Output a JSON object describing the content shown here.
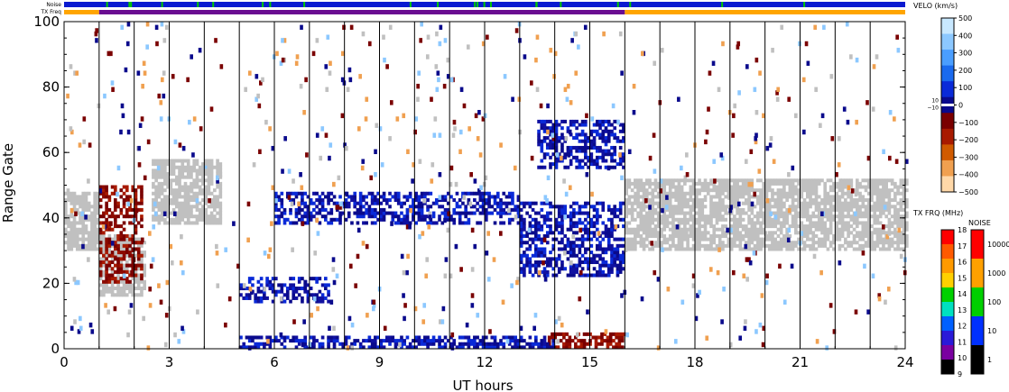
{
  "chart_data": {
    "type": "heatmap",
    "title": "",
    "xlabel": "UT hours",
    "ylabel": "Range Gate",
    "xlim": [
      0,
      24
    ],
    "ylim": [
      0,
      100
    ],
    "x_ticks": [
      "0",
      "3",
      "6",
      "9",
      "12",
      "15",
      "18",
      "21",
      "24"
    ],
    "y_ticks": [
      "0",
      "20",
      "40",
      "60",
      "80",
      "100"
    ],
    "scan_boundaries_ut": [
      1,
      2,
      3,
      4,
      5,
      6,
      7,
      8,
      9,
      10,
      11,
      12,
      13,
      14,
      15,
      16,
      17,
      18,
      19,
      20,
      21,
      22,
      23
    ],
    "top_bars": {
      "noise_label": "Noise",
      "txfreq_label": "TX Freq",
      "txfreq_segments": [
        {
          "from": 0,
          "to": 1,
          "color": "#ffa500"
        },
        {
          "from": 1,
          "to": 16,
          "color": "#6a0d91"
        },
        {
          "from": 16,
          "to": 24,
          "color": "#ffa500"
        }
      ]
    },
    "echo_regions": [
      {
        "name": "",
        "kind": "ground_scatter",
        "x": [
          0,
          1
        ],
        "y": [
          30,
          48
        ]
      },
      {
        "name": "",
        "kind": "ground_scatter",
        "x": [
          1,
          2.3
        ],
        "y": [
          16,
          35
        ]
      },
      {
        "name": "",
        "kind": "ground_scatter",
        "x": [
          2.5,
          4.5
        ],
        "y": [
          38,
          58
        ]
      },
      {
        "name": "",
        "kind": "ground_scatter",
        "x": [
          16,
          24
        ],
        "y": [
          30,
          52
        ]
      },
      {
        "name": "",
        "kind": "negative_velocity",
        "x": [
          1,
          2.2
        ],
        "y": [
          20,
          50
        ]
      },
      {
        "name": "",
        "kind": "negative_velocity",
        "x": [
          13.8,
          16
        ],
        "y": [
          0,
          5
        ]
      },
      {
        "name": "",
        "kind": "positive_velocity",
        "x": [
          5,
          7.5
        ],
        "y": [
          14,
          22
        ]
      },
      {
        "name": "",
        "kind": "positive_velocity",
        "x": [
          6,
          13
        ],
        "y": [
          38,
          48
        ]
      },
      {
        "name": "",
        "kind": "positive_velocity",
        "x": [
          5,
          14
        ],
        "y": [
          0,
          4
        ]
      },
      {
        "name": "",
        "kind": "positive_velocity",
        "x": [
          13.5,
          16
        ],
        "y": [
          55,
          70
        ]
      },
      {
        "name": "",
        "kind": "positive_velocity",
        "x": [
          13,
          16
        ],
        "y": [
          22,
          45
        ]
      }
    ],
    "velocity_colorbar": {
      "title": "VELO (km/s)",
      "ticks": [
        "500",
        "400",
        "300",
        "200",
        "100",
        "0",
        "−100",
        "−200",
        "−300",
        "−400",
        "−500"
      ],
      "inner_ticks": [
        "10",
        "−10"
      ],
      "colors": [
        "#c8e8ff",
        "#8cc8ff",
        "#4a9eff",
        "#1a6aee",
        "#0a2ad8",
        "#0a0a8c",
        "#7a0000",
        "#a81a00",
        "#d05a00",
        "#f0a050",
        "#ffd8a8"
      ]
    },
    "txfreq_colorbar": {
      "title": "TX FRQ (MHz)",
      "ticks": [
        "18",
        "17",
        "16",
        "15",
        "14",
        "13",
        "12",
        "11",
        "10",
        "9"
      ],
      "colors": [
        "#ff0000",
        "#ff5a00",
        "#ff9a00",
        "#ffd000",
        "#00d000",
        "#00e0c0",
        "#0060ff",
        "#2a1ad8",
        "#7a00a0",
        "#000000"
      ]
    },
    "noise_colorbar": {
      "title": "NOISE",
      "ticks": [
        "10000",
        "1000",
        "100",
        "10",
        "1"
      ],
      "colors": [
        "#ff0000",
        "#ffa000",
        "#00d000",
        "#0030ff",
        "#000000"
      ]
    },
    "colors": {
      "ground_scatter": "#c0c0c0",
      "frame": "#000000"
    }
  }
}
